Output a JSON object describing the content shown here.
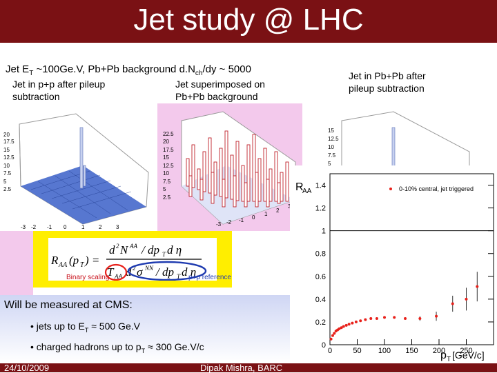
{
  "slide": {
    "title": "Jet study @ LHC",
    "subtitle": {
      "pre": "Jet E",
      "sub1": "T",
      "mid": " ~100Ge.V, Pb+Pb background d.N",
      "sub2": "ch",
      "post": "/dy ~ 5000"
    },
    "captions": {
      "left": [
        "Jet in p+p after pileup",
        "subtraction"
      ],
      "middle": [
        "Jet superimposed on",
        "Pb+Pb background"
      ],
      "right": [
        "Jet in Pb+Pb after",
        "pileup subtraction"
      ]
    },
    "formula": {
      "binary_label": "Binary scaling",
      "pp_label": "p+p reference"
    },
    "measure": {
      "heading": "Will be measured at CMS:",
      "b1": {
        "pre": "• jets up to E",
        "sub": "T",
        "post": " ≈ 500 Ge.V"
      },
      "b2": {
        "pre": "• charged hadrons up to p",
        "sub": "T",
        "post": " ≈ 300 Ge.V/c"
      }
    },
    "footer": {
      "date": "24/10/2009",
      "author": "Dipak Mishra, BARC"
    }
  },
  "colors": {
    "title_bg": "#7a1114",
    "formula_bg": "#ffee00",
    "marker": "#e8201a",
    "lego_blue": "#3a5fc8"
  },
  "chart_data": {
    "type": "scatter",
    "xlabel": "p_T [GeV/c]",
    "ylabel": "R_AA",
    "xlim": [
      0,
      300
    ],
    "ylim": [
      0,
      1.5
    ],
    "xticks": [
      "0",
      "50",
      "100",
      "150",
      "200",
      "250"
    ],
    "yticks": [
      "0",
      "0.2",
      "0.4",
      "0.6",
      "0.8",
      "1",
      "1.2",
      "1.4"
    ],
    "legend": "0-10% central, jet triggered",
    "series": [
      {
        "name": "0-10% central, jet triggered",
        "x": [
          2,
          5,
          8,
          11,
          14,
          17,
          21,
          25,
          30,
          35,
          41,
          48,
          56,
          65,
          75,
          86,
          100,
          118,
          138,
          165,
          195,
          225,
          250,
          270
        ],
        "y": [
          0.05,
          0.08,
          0.1,
          0.12,
          0.13,
          0.14,
          0.15,
          0.16,
          0.17,
          0.18,
          0.19,
          0.2,
          0.21,
          0.22,
          0.23,
          0.23,
          0.24,
          0.24,
          0.23,
          0.23,
          0.25,
          0.36,
          0.4,
          0.51
        ],
        "err": [
          0,
          0,
          0,
          0,
          0,
          0,
          0,
          0,
          0,
          0,
          0,
          0,
          0,
          0,
          0,
          0,
          0,
          0,
          0,
          0.02,
          0.04,
          0.07,
          0.1,
          0.13
        ]
      }
    ]
  }
}
